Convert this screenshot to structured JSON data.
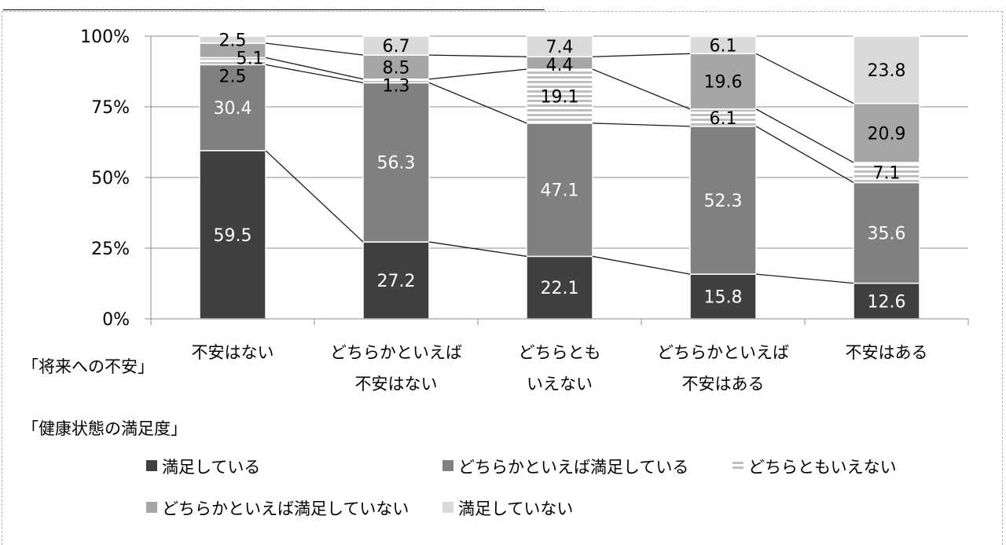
{
  "chart_data": {
    "type": "bar",
    "stacked": true,
    "percent": true,
    "categories": [
      [
        "不安はない"
      ],
      [
        "どちらかといえば",
        "不安はない"
      ],
      [
        "どちらとも",
        "いえない"
      ],
      [
        "どちらかといえば",
        "不安はある"
      ],
      [
        "不安はある"
      ]
    ],
    "yticks": [
      "0%",
      "25%",
      "50%",
      "75%",
      "100%"
    ],
    "ylim": [
      0,
      100
    ],
    "xlabel": "「将来への不安」",
    "legend_title": "「健康状態の満足度」",
    "legend_position": "bottom",
    "series_lines": true,
    "grid": true,
    "series": [
      {
        "name": "満足している",
        "values": [
          59.5,
          27.2,
          22.1,
          15.8,
          12.6
        ],
        "color": "#404040",
        "label_color": "#ffffff",
        "pattern": "solid"
      },
      {
        "name": "どちらかといえば満足している",
        "values": [
          30.4,
          56.3,
          47.1,
          52.3,
          35.6
        ],
        "color": "#808080",
        "label_color": "#ffffff",
        "pattern": "solid"
      },
      {
        "name": "どちらともいえない",
        "values": [
          2.5,
          1.3,
          19.1,
          6.1,
          7.1
        ],
        "color": "#bfbfbf",
        "label_color": "#000000",
        "pattern": "hstripes"
      },
      {
        "name": "どちらかといえば満足していない",
        "values": [
          5.1,
          8.5,
          4.4,
          19.6,
          20.9
        ],
        "color": "#a6a6a6",
        "label_color": "#000000",
        "pattern": "solid"
      },
      {
        "name": "満足していない",
        "values": [
          2.5,
          6.7,
          7.4,
          6.1,
          23.8
        ],
        "color": "#d9d9d9",
        "label_color": "#000000",
        "pattern": "solid"
      }
    ]
  }
}
